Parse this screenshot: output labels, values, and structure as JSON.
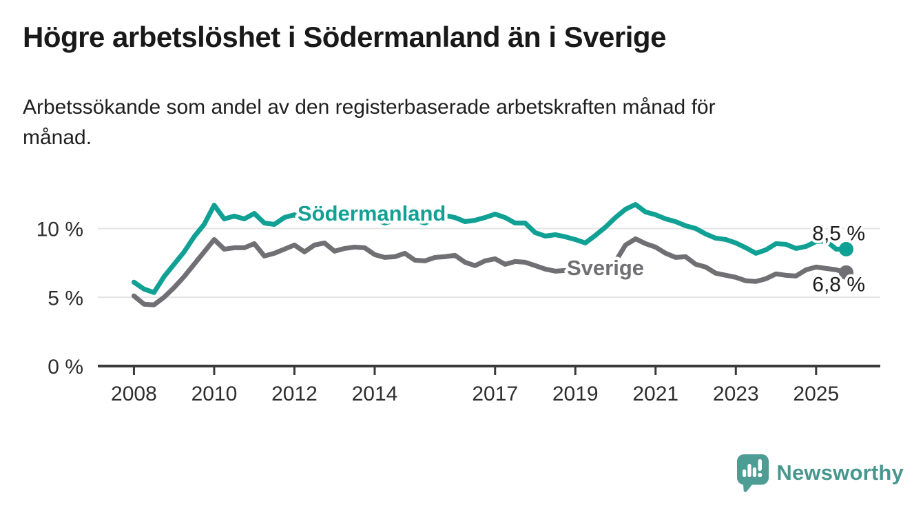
{
  "chart_data": {
    "type": "line",
    "title": "Högre arbetslöshet i Södermanland än i Sverige",
    "subtitle": "Arbetssökande som andel av den registerbaserade arbetskraften månad för\nmånad.",
    "grid": "horizontal",
    "xlim": [
      2007.1,
      2026.6
    ],
    "ylim": [
      0,
      12.5
    ],
    "y_ticks": [
      0,
      5,
      10
    ],
    "y_tick_labels": [
      "0 %",
      "5 %",
      "10 %"
    ],
    "x_ticks": [
      2008,
      2010,
      2012,
      2014,
      2017,
      2019,
      2021,
      2023,
      2025
    ],
    "x_tick_labels": [
      "2008",
      "2010",
      "2012",
      "2014",
      "2017",
      "2019",
      "2021",
      "2023",
      "2025"
    ],
    "x": [
      2008.0,
      2008.25,
      2008.5,
      2008.75,
      2009.0,
      2009.25,
      2009.5,
      2009.75,
      2010.0,
      2010.25,
      2010.5,
      2010.75,
      2011.0,
      2011.25,
      2011.5,
      2011.75,
      2012.0,
      2012.25,
      2012.5,
      2012.75,
      2013.0,
      2013.25,
      2013.5,
      2013.75,
      2014.0,
      2014.25,
      2014.5,
      2014.75,
      2015.0,
      2015.25,
      2015.5,
      2015.75,
      2016.0,
      2016.25,
      2016.5,
      2016.75,
      2017.0,
      2017.25,
      2017.5,
      2017.75,
      2018.0,
      2018.25,
      2018.5,
      2018.75,
      2019.0,
      2019.25,
      2019.5,
      2019.75,
      2020.0,
      2020.25,
      2020.5,
      2020.75,
      2021.0,
      2021.25,
      2021.5,
      2021.75,
      2022.0,
      2022.25,
      2022.5,
      2022.75,
      2023.0,
      2023.25,
      2023.5,
      2023.75,
      2024.0,
      2024.25,
      2024.5,
      2024.75,
      2025.0,
      2025.25,
      2025.5,
      2025.75
    ],
    "series": [
      {
        "name": "Södermanland",
        "color": "#10A094",
        "end_label": "8,5 %",
        "end_value": 8.5,
        "values": [
          6.1,
          5.6,
          5.35,
          6.5,
          7.4,
          8.3,
          9.4,
          10.3,
          11.7,
          10.7,
          10.9,
          10.7,
          11.1,
          10.4,
          10.3,
          10.8,
          11.0,
          10.5,
          10.8,
          11.0,
          10.7,
          11.0,
          10.8,
          10.9,
          10.7,
          10.4,
          10.6,
          10.8,
          10.6,
          10.4,
          10.7,
          10.95,
          10.8,
          10.5,
          10.6,
          10.8,
          11.05,
          10.8,
          10.4,
          10.4,
          9.7,
          9.45,
          9.55,
          9.4,
          9.2,
          8.95,
          9.5,
          10.1,
          10.8,
          11.4,
          11.75,
          11.2,
          11.0,
          10.7,
          10.5,
          10.2,
          10.0,
          9.6,
          9.3,
          9.2,
          8.95,
          8.6,
          8.2,
          8.45,
          8.9,
          8.85,
          8.55,
          8.7,
          9.05,
          9.1,
          8.5,
          8.5
        ]
      },
      {
        "name": "Sverige",
        "color": "#707074",
        "end_label": "6,8 %",
        "end_value": 6.8,
        "values": [
          5.1,
          4.5,
          4.45,
          5.0,
          5.7,
          6.5,
          7.4,
          8.3,
          9.2,
          8.5,
          8.6,
          8.6,
          8.9,
          8.0,
          8.2,
          8.5,
          8.8,
          8.3,
          8.8,
          8.95,
          8.35,
          8.55,
          8.65,
          8.6,
          8.1,
          7.9,
          7.95,
          8.2,
          7.7,
          7.65,
          7.9,
          7.95,
          8.05,
          7.55,
          7.3,
          7.65,
          7.8,
          7.4,
          7.6,
          7.55,
          7.3,
          7.05,
          6.9,
          6.95,
          6.9,
          6.8,
          6.9,
          7.1,
          7.6,
          8.8,
          9.25,
          8.9,
          8.65,
          8.2,
          7.9,
          7.95,
          7.4,
          7.2,
          6.75,
          6.6,
          6.45,
          6.2,
          6.15,
          6.35,
          6.7,
          6.6,
          6.55,
          7.0,
          7.2,
          7.1,
          7.0,
          6.8
        ]
      }
    ]
  },
  "branding": {
    "wordmark": "Newsworthy"
  }
}
